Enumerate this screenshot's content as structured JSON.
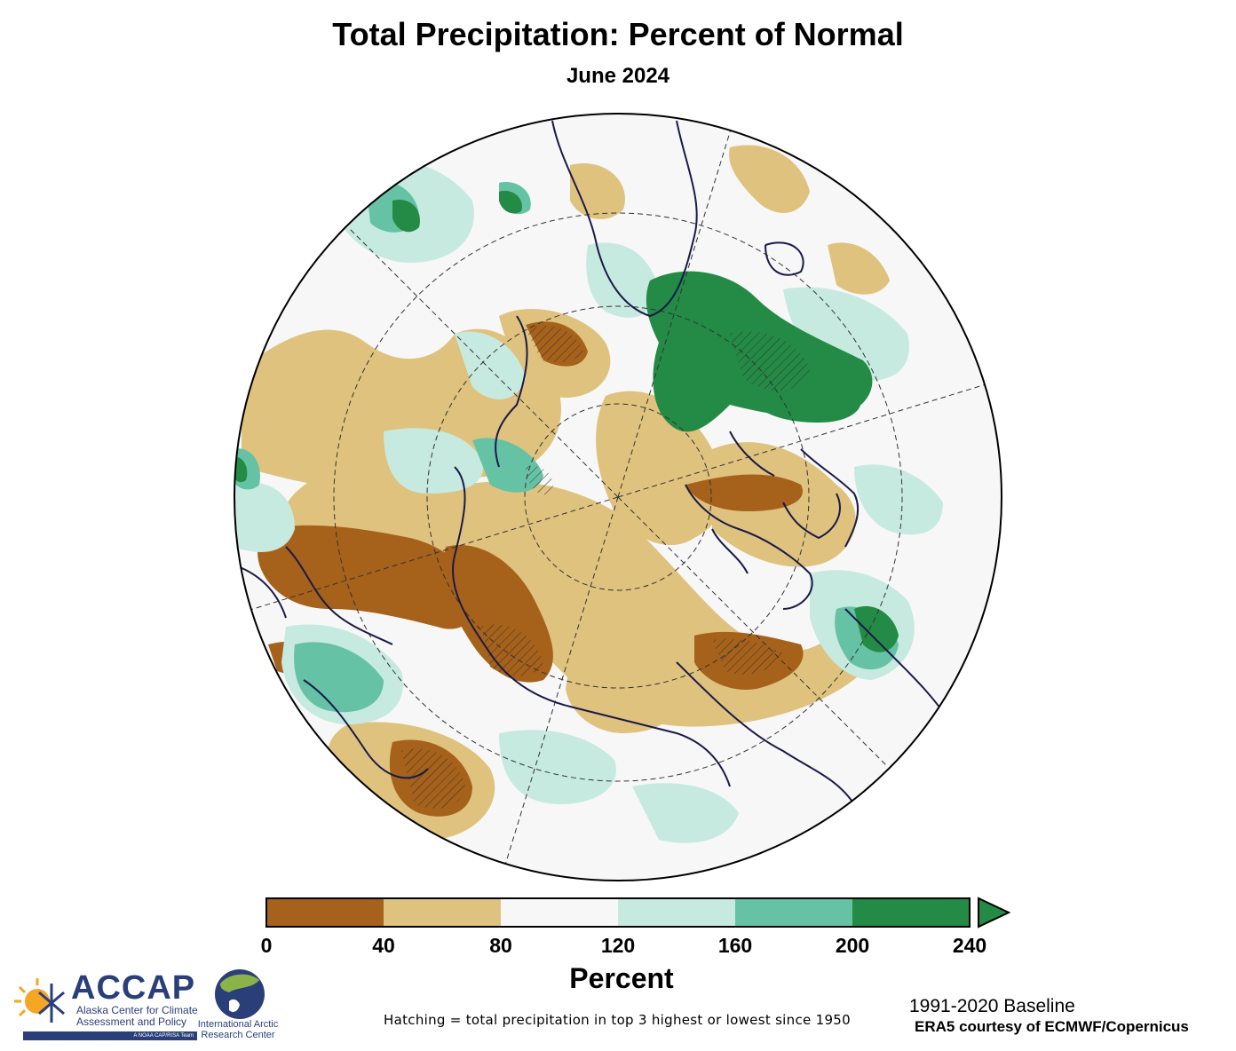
{
  "title": "Total Precipitation: Percent of Normal",
  "subtitle": "June 2024",
  "colorbar": {
    "unit_label": "Percent",
    "ticks": [
      "0",
      "40",
      "80",
      "120",
      "160",
      "200",
      "240"
    ],
    "bins": [
      {
        "from": 0,
        "to": 40,
        "color": "#a6611a"
      },
      {
        "from": 40,
        "to": 80,
        "color": "#dfc27d"
      },
      {
        "from": 80,
        "to": 120,
        "color": "#f7f7f7"
      },
      {
        "from": 120,
        "to": 160,
        "color": "#c7eae0"
      },
      {
        "from": 160,
        "to": 200,
        "color": "#66c2a4"
      },
      {
        "from": 200,
        "to": 240,
        "color": "#238b45"
      }
    ],
    "extend": "max"
  },
  "notes": {
    "hatching": "Hatching = total precipitation in top 3 highest or lowest since 1950",
    "baseline": "1991-2020 Baseline",
    "source": "ERA5 courtesy of ECMWF/Copernicus"
  },
  "logos": {
    "accap_name": "ACCAP",
    "accap_full": "Alaska Center for Climate Assessment and Policy",
    "accap_tag": "A NOAA CAP/RISA Team",
    "iarc_name": "International Arctic Research Center"
  },
  "colors": {
    "very_dry": "#a6611a",
    "dry": "#dfc27d",
    "normal": "#f7f7f7",
    "wet": "#c7eae0",
    "wetter": "#66c2a4",
    "very_wet": "#238b45",
    "coast": "#1a1a4a"
  }
}
